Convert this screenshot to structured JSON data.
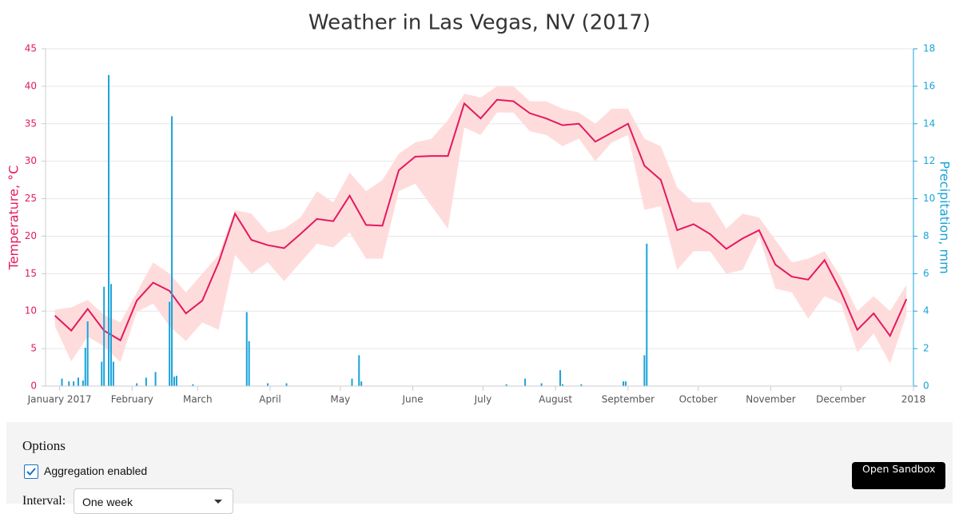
{
  "chart_data": {
    "type": "line",
    "title": "Weather in Las Vegas, NV (2017)",
    "y_label": "Temperature, °C",
    "y2_label": "Precipitation, mm",
    "x": [
      -2,
      5,
      12,
      19,
      26,
      33,
      40,
      47,
      54,
      61,
      68,
      75,
      82,
      89,
      96,
      103,
      110,
      117,
      124,
      131,
      138,
      145,
      152,
      159,
      166,
      173,
      180,
      187,
      194,
      201,
      208,
      215,
      222,
      229,
      236,
      243,
      250,
      257,
      264,
      271,
      278,
      285,
      292,
      299,
      306,
      313,
      320,
      327,
      334,
      341,
      348,
      355,
      362
    ],
    "xlim": [
      -6,
      365
    ],
    "xticks": [
      {
        "value": 0,
        "label": "January 2017"
      },
      {
        "value": 31,
        "label": "February"
      },
      {
        "value": 59,
        "label": "March"
      },
      {
        "value": 90,
        "label": "April"
      },
      {
        "value": 120,
        "label": "May"
      },
      {
        "value": 151,
        "label": "June"
      },
      {
        "value": 181,
        "label": "July"
      },
      {
        "value": 212,
        "label": "August"
      },
      {
        "value": 243,
        "label": "September"
      },
      {
        "value": 273,
        "label": "October"
      },
      {
        "value": 304,
        "label": "November"
      },
      {
        "value": 334,
        "label": "December"
      },
      {
        "value": 365,
        "label": "2018"
      }
    ],
    "ylim": [
      0,
      45
    ],
    "yticks": [
      0,
      5,
      10,
      15,
      20,
      25,
      30,
      35,
      40,
      45
    ],
    "y2lim": [
      0,
      18
    ],
    "y2ticks": [
      0,
      2,
      4,
      6,
      8,
      10,
      12,
      14,
      16,
      18
    ],
    "grid": true,
    "series": [
      {
        "type": "arearange",
        "color": "#ffdcdc",
        "high": [
          10.2,
          10.5,
          11.5,
          9.5,
          8.5,
          12.5,
          16.5,
          15.0,
          12.5,
          15.0,
          17.5,
          23.5,
          23.0,
          20.5,
          21.0,
          22.5,
          26.0,
          24.5,
          28.5,
          26.0,
          27.5,
          31.0,
          32.5,
          33.0,
          35.5,
          39.0,
          38.5,
          40.0,
          40.0,
          38.0,
          38.0,
          37.0,
          36.5,
          35.0,
          37.0,
          37.0,
          33.0,
          32.0,
          26.5,
          24.5,
          24.5,
          21.0,
          23.0,
          22.5,
          19.5,
          16.5,
          17.0,
          18.0,
          14.5,
          10.0,
          12.0,
          10.0,
          13.5
        ],
        "low": [
          8.0,
          3.3,
          6.6,
          5.3,
          3.2,
          9.9,
          11.0,
          8.0,
          6.0,
          8.5,
          7.5,
          17.5,
          15.0,
          16.5,
          14.0,
          16.5,
          19.0,
          18.5,
          20.5,
          17.0,
          17.0,
          26.0,
          27.0,
          24.0,
          21.0,
          34.5,
          33.5,
          36.5,
          36.5,
          34.0,
          33.5,
          32.0,
          33.0,
          30.0,
          32.5,
          33.5,
          23.5,
          24.0,
          15.5,
          18.0,
          18.0,
          15.0,
          15.5,
          20.0,
          13.0,
          12.5,
          9.0,
          12.0,
          11.0,
          4.5,
          7.0,
          3.0,
          9.5
        ]
      },
      {
        "type": "line",
        "color": "#e3195f",
        "values": [
          9.4,
          7.4,
          10.3,
          7.4,
          6.1,
          11.4,
          13.8,
          12.7,
          9.7,
          11.4,
          16.5,
          23.0,
          19.5,
          18.8,
          18.4,
          20.3,
          22.3,
          22.0,
          25.4,
          21.5,
          21.4,
          28.8,
          30.6,
          30.7,
          30.7,
          37.7,
          35.7,
          38.2,
          38.0,
          36.4,
          35.7,
          34.8,
          35.0,
          32.6,
          33.8,
          35.0,
          29.4,
          27.5,
          20.8,
          21.6,
          20.3,
          18.3,
          19.7,
          20.8,
          16.2,
          14.6,
          14.2,
          16.8,
          12.6,
          7.5,
          9.7,
          6.7,
          11.6
        ]
      },
      {
        "type": "bar",
        "axis": "y2",
        "color": "#1aa3d9",
        "x": [
          1,
          4,
          6,
          8,
          10,
          11,
          12,
          18,
          19,
          21,
          22,
          23,
          33,
          37,
          41,
          47,
          48,
          49,
          50,
          57,
          80,
          81,
          89,
          97,
          125,
          128,
          129,
          191,
          199,
          206,
          214,
          215,
          223,
          241,
          242,
          250,
          251
        ],
        "values": [
          0.4,
          0.25,
          0.25,
          0.45,
          0.3,
          2.05,
          3.45,
          1.3,
          5.3,
          16.6,
          5.45,
          1.3,
          0.15,
          0.45,
          0.75,
          4.5,
          14.4,
          0.5,
          0.55,
          0.1,
          3.95,
          2.4,
          0.15,
          0.15,
          0.4,
          1.65,
          0.25,
          0.1,
          0.4,
          0.15,
          0.85,
          0.1,
          0.1,
          0.25,
          0.25,
          1.65,
          7.6
        ]
      }
    ]
  },
  "ui": {
    "panel_title": "Options",
    "checkbox_label": "Aggregation enabled",
    "checked": true,
    "interval_label": "Interval:",
    "interval_value": "One week",
    "button": "Open Sandbox"
  }
}
